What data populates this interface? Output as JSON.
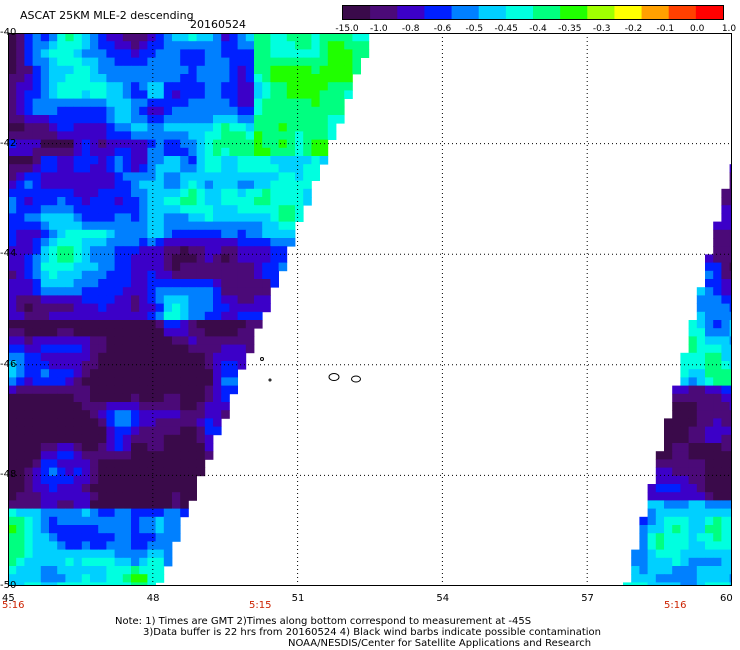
{
  "header": {
    "title": "ASCAT 25KM MLE-2 descending",
    "date": "20160524"
  },
  "colorbar": {
    "ticks": [
      "-15.0",
      "-1.0",
      "-0.8",
      "-0.6",
      "-0.5",
      "-0.45",
      "-0.4",
      "-0.35",
      "-0.3",
      "-0.2",
      "-0.1",
      "0.0",
      "1.0"
    ],
    "colors": [
      "#3a0a4a",
      "#4b0a78",
      "#3c00c8",
      "#0020ff",
      "#0080ff",
      "#00d0ff",
      "#00ffe0",
      "#00ff80",
      "#20ff00",
      "#a0ff00",
      "#ffff00",
      "#ffa000",
      "#ff4000",
      "#ff0000"
    ]
  },
  "map": {
    "lat_labels": [
      "-40",
      "-42",
      "-44",
      "-46",
      "-48",
      "-50"
    ],
    "lon_labels": [
      "45",
      "48",
      "51",
      "54",
      "57",
      "60"
    ],
    "time_labels": [
      "5:16",
      "5:15",
      "5:16"
    ]
  },
  "notes": [
    "Note: 1) Times are GMT 2)Times along bottom correspond to measurement at -45S",
    "3)Data buffer is 22 hrs from 20160524 4) Black wind barbs indicate possible contamination",
    "NOAA/NESDIS/Center for Satellite Applications and Research"
  ]
}
